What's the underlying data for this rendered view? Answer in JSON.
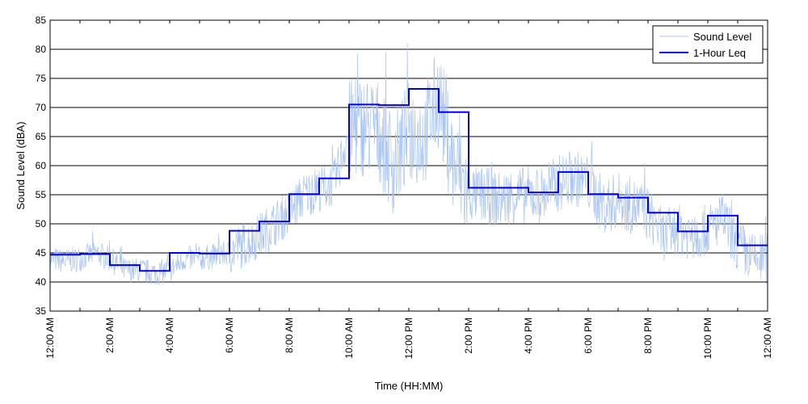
{
  "chart_data": {
    "type": "line",
    "title": "",
    "xlabel": "Time (HH:MM)",
    "ylabel": "Sound Level (dBA)",
    "ylim": [
      35,
      85
    ],
    "yticks": [
      35,
      40,
      45,
      50,
      55,
      60,
      65,
      70,
      75,
      80,
      85
    ],
    "xlim_hours": [
      0,
      24
    ],
    "xticks": [
      {
        "hour": 0,
        "label": "12:00 AM"
      },
      {
        "hour": 2,
        "label": "2:00 AM"
      },
      {
        "hour": 4,
        "label": "4:00 AM"
      },
      {
        "hour": 6,
        "label": "6:00 AM"
      },
      {
        "hour": 8,
        "label": "8:00 AM"
      },
      {
        "hour": 10,
        "label": "10:00 AM"
      },
      {
        "hour": 12,
        "label": "12:00 PM"
      },
      {
        "hour": 14,
        "label": "2:00 PM"
      },
      {
        "hour": 16,
        "label": "4:00 PM"
      },
      {
        "hour": 18,
        "label": "6:00 PM"
      },
      {
        "hour": 20,
        "label": "8:00 PM"
      },
      {
        "hour": 22,
        "label": "10:00 PM"
      },
      {
        "hour": 24,
        "label": "12:00 AM"
      }
    ],
    "grid": "horizontal",
    "legend_position": "top-right",
    "series": [
      {
        "name": "Sound Level",
        "color": "#a8c4f0",
        "hour_index": [
          0,
          0.5,
          1,
          1.5,
          2,
          2.5,
          3,
          3.5,
          4,
          4.5,
          5,
          5.5,
          6,
          6.5,
          7,
          7.5,
          8,
          8.5,
          9,
          9.5,
          10,
          10.5,
          11,
          11.5,
          12,
          12.5,
          13,
          13.5,
          14,
          14.5,
          15,
          15.5,
          16,
          16.5,
          17,
          17.5,
          18,
          18.5,
          19,
          19.5,
          20,
          20.5,
          21,
          21.5,
          22,
          22.5,
          23,
          23.5,
          24
        ],
        "values": [
          44,
          43.5,
          44,
          45,
          44,
          42,
          42,
          41.5,
          42,
          44,
          44,
          44.5,
          45,
          46.5,
          48,
          50,
          52,
          55,
          56,
          57,
          66,
          67,
          66,
          60,
          66,
          65,
          72,
          60,
          55,
          55,
          54,
          55,
          55,
          55,
          57,
          58,
          57,
          53,
          54,
          53,
          52,
          48,
          49,
          48,
          49,
          51,
          46,
          44,
          44
        ]
      },
      {
        "name": "1-Hour Leq",
        "color": "#0000ee",
        "step_hours": [
          0,
          1,
          2,
          3,
          4,
          5,
          6,
          7,
          8,
          9,
          10,
          11,
          12,
          13,
          14,
          15,
          16,
          17,
          18,
          19,
          20,
          21,
          22,
          23
        ],
        "values": [
          44.7,
          44.8,
          42.9,
          41.9,
          45.0,
          44.9,
          48.8,
          50.4,
          55.1,
          57.8,
          70.5,
          70.4,
          73.2,
          69.2,
          56.2,
          56.2,
          55.4,
          58.9,
          55.1,
          54.5,
          51.9,
          48.7,
          51.4,
          46.3
        ]
      }
    ]
  }
}
